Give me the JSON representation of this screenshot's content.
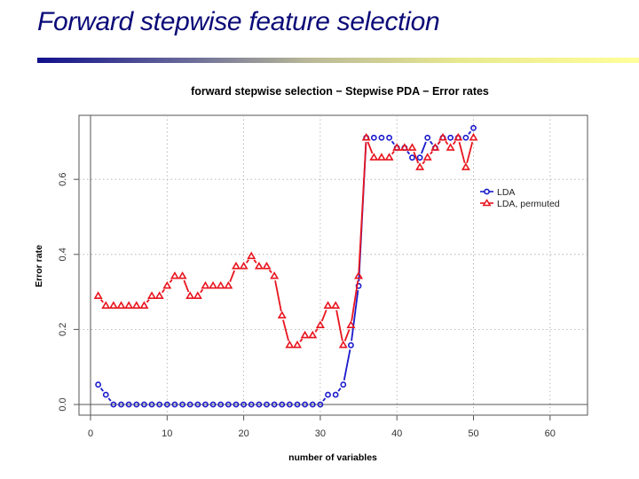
{
  "slide": {
    "title": "Forward stepwise feature selection",
    "accent_gradient": [
      "#10108c",
      "#ffff9a"
    ]
  },
  "chart_data": {
    "type": "line",
    "title": "forward stepwise selection − Stepwise PDA − Error rates",
    "xlabel": "number of variables",
    "ylabel": "Error rate",
    "xlim": [
      -1.5,
      65
    ],
    "ylim": [
      -0.03,
      0.77
    ],
    "xticks": [
      0,
      10,
      20,
      30,
      40,
      50,
      60
    ],
    "yticks": [
      0.0,
      0.2,
      0.4,
      0.6
    ],
    "xtick_labels": [
      "0",
      "10",
      "20",
      "30",
      "40",
      "50",
      "60"
    ],
    "ytick_labels": [
      "0.0",
      "0.2",
      "0.4",
      "0.6"
    ],
    "grid": true,
    "legend_position": "upper right (inside)",
    "x": [
      1,
      2,
      3,
      4,
      5,
      6,
      7,
      8,
      9,
      10,
      11,
      12,
      13,
      14,
      15,
      16,
      17,
      18,
      19,
      20,
      21,
      22,
      23,
      24,
      25,
      26,
      27,
      28,
      29,
      30,
      31,
      32,
      33,
      34,
      35,
      36,
      37,
      38,
      39,
      40,
      41,
      42,
      43,
      44,
      45,
      46,
      47,
      48,
      49,
      50
    ],
    "series": [
      {
        "name": "LDA",
        "color": "#1a1acc",
        "marker": "circle",
        "values": [
          0.053,
          0.026,
          0,
          0,
          0,
          0,
          0,
          0,
          0,
          0,
          0,
          0,
          0,
          0,
          0,
          0,
          0,
          0,
          0,
          0,
          0,
          0,
          0,
          0,
          0,
          0,
          0,
          0,
          0,
          0,
          0.026,
          0.026,
          0.053,
          0.158,
          0.316,
          0.711,
          0.711,
          0.711,
          0.711,
          0.684,
          0.684,
          0.658,
          0.658,
          0.711,
          0.684,
          0.711,
          0.711,
          0.711,
          0.711,
          0.737
        ]
      },
      {
        "name": "LDA, permuted",
        "color": "#e8141e",
        "marker": "triangle",
        "values": [
          0.289,
          0.263,
          0.263,
          0.263,
          0.263,
          0.263,
          0.263,
          0.289,
          0.289,
          0.316,
          0.342,
          0.342,
          0.289,
          0.289,
          0.316,
          0.316,
          0.316,
          0.316,
          0.368,
          0.368,
          0.395,
          0.368,
          0.368,
          0.342,
          0.237,
          0.158,
          0.158,
          0.184,
          0.184,
          0.211,
          0.263,
          0.263,
          0.158,
          0.211,
          0.342,
          0.711,
          0.658,
          0.658,
          0.658,
          0.684,
          0.684,
          0.684,
          0.632,
          0.658,
          0.684,
          0.711,
          0.684,
          0.711,
          0.632,
          0.711
        ]
      }
    ]
  }
}
